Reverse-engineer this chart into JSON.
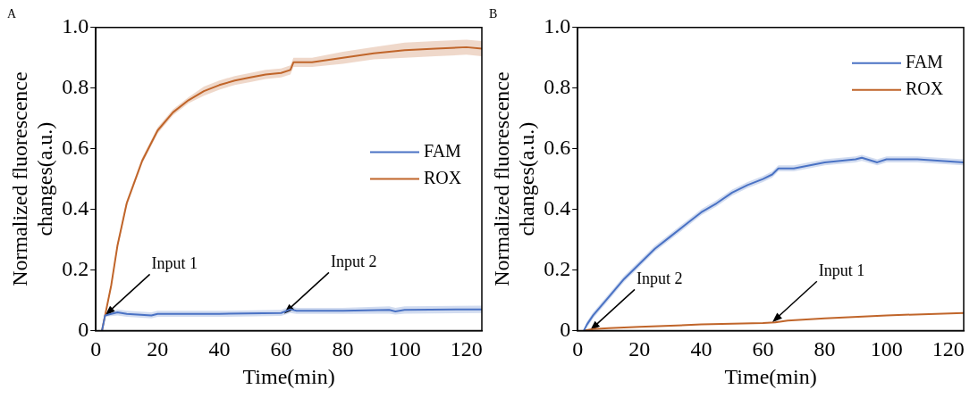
{
  "chart_data": [
    {
      "type": "line",
      "title": "A",
      "xlabel": "Time(min)",
      "ylabel": "Normalized fluorescence changes(a.u.)",
      "xlim": [
        0,
        125
      ],
      "xticks": [
        0,
        20,
        40,
        60,
        80,
        100,
        120
      ],
      "ylim": [
        0,
        1
      ],
      "yticks": [
        0,
        0.2,
        0.4,
        0.6,
        0.8,
        {
          "value": 1,
          "label": "1.0"
        }
      ],
      "grid": false,
      "legend": "right",
      "annotations": [
        {
          "text": "Input 1",
          "x": 3,
          "y": 0.05
        },
        {
          "text": "Input 2",
          "x": 61,
          "y": 0.056
        }
      ],
      "series": [
        {
          "name": "FAM",
          "color": "#4a72c4",
          "x": [
            2,
            3,
            7,
            10,
            18,
            20,
            40,
            60,
            63,
            65,
            80,
            95,
            97,
            100,
            125
          ],
          "values": [
            0,
            0.05,
            0.06,
            0.055,
            0.05,
            0.055,
            0.055,
            0.058,
            0.07,
            0.065,
            0.065,
            0.068,
            0.063,
            0.068,
            0.07
          ],
          "lower": [
            0,
            0.045,
            0.05,
            0.045,
            0.04,
            0.045,
            0.045,
            0.048,
            0.058,
            0.055,
            0.055,
            0.056,
            0.053,
            0.056,
            0.058
          ],
          "upper": [
            0,
            0.055,
            0.07,
            0.065,
            0.06,
            0.065,
            0.065,
            0.068,
            0.08,
            0.075,
            0.075,
            0.08,
            0.075,
            0.08,
            0.082
          ]
        },
        {
          "name": "ROX",
          "color": "#c0652a",
          "x": [
            2,
            3,
            5,
            7,
            10,
            15,
            20,
            25,
            30,
            35,
            40,
            45,
            50,
            55,
            60,
            63,
            64,
            70,
            80,
            90,
            100,
            110,
            120,
            125
          ],
          "values": [
            0,
            0.05,
            0.15,
            0.28,
            0.42,
            0.56,
            0.66,
            0.72,
            0.76,
            0.79,
            0.81,
            0.825,
            0.835,
            0.845,
            0.85,
            0.86,
            0.885,
            0.885,
            0.9,
            0.915,
            0.925,
            0.93,
            0.935,
            0.93
          ],
          "lower": [
            0,
            0.045,
            0.14,
            0.27,
            0.41,
            0.55,
            0.65,
            0.71,
            0.75,
            0.775,
            0.795,
            0.81,
            0.82,
            0.83,
            0.835,
            0.845,
            0.87,
            0.87,
            0.88,
            0.895,
            0.9,
            0.905,
            0.91,
            0.905
          ],
          "upper": [
            0,
            0.055,
            0.16,
            0.29,
            0.43,
            0.57,
            0.67,
            0.73,
            0.77,
            0.805,
            0.825,
            0.84,
            0.85,
            0.86,
            0.865,
            0.875,
            0.9,
            0.9,
            0.92,
            0.935,
            0.95,
            0.955,
            0.96,
            0.955
          ]
        }
      ]
    },
    {
      "type": "line",
      "title": "B",
      "xlabel": "Time(min)",
      "ylabel": "Normalized fluorescence changes(a.u.)",
      "xlim": [
        0,
        125
      ],
      "xticks": [
        0,
        20,
        40,
        60,
        80,
        100,
        120
      ],
      "ylim": [
        0,
        1
      ],
      "yticks": [
        0,
        0.2,
        0.4,
        0.6,
        0.8,
        {
          "value": 1,
          "label": "1.0"
        }
      ],
      "grid": false,
      "legend": "top right",
      "annotations": [
        {
          "text": "Input 2",
          "x": 4,
          "y": 0
        },
        {
          "text": "Input 1",
          "x": 63,
          "y": 0.027
        }
      ],
      "series": [
        {
          "name": "FAM",
          "color": "#4a72c4",
          "x": [
            2,
            3,
            5,
            10,
            15,
            20,
            25,
            30,
            35,
            40,
            45,
            50,
            55,
            60,
            63,
            65,
            70,
            80,
            90,
            92,
            97,
            100,
            110,
            125
          ],
          "values": [
            0,
            0.02,
            0.05,
            0.11,
            0.17,
            0.22,
            0.27,
            0.31,
            0.35,
            0.39,
            0.42,
            0.455,
            0.48,
            0.5,
            0.515,
            0.535,
            0.535,
            0.555,
            0.565,
            0.57,
            0.555,
            0.565,
            0.565,
            0.555
          ],
          "lower": [
            0,
            0.01,
            0.04,
            0.1,
            0.16,
            0.21,
            0.26,
            0.3,
            0.34,
            0.38,
            0.41,
            0.445,
            0.47,
            0.49,
            0.505,
            0.525,
            0.525,
            0.545,
            0.555,
            0.56,
            0.545,
            0.555,
            0.555,
            0.545
          ],
          "upper": [
            0,
            0.03,
            0.06,
            0.12,
            0.18,
            0.23,
            0.28,
            0.32,
            0.36,
            0.4,
            0.43,
            0.465,
            0.49,
            0.51,
            0.525,
            0.545,
            0.545,
            0.565,
            0.575,
            0.58,
            0.565,
            0.575,
            0.575,
            0.565
          ]
        },
        {
          "name": "ROX",
          "color": "#c0652a",
          "x": [
            2,
            5,
            10,
            20,
            40,
            60,
            64,
            68,
            80,
            100,
            125
          ],
          "values": [
            0,
            0.005,
            0.008,
            0.012,
            0.02,
            0.025,
            0.027,
            0.033,
            0.04,
            0.05,
            0.058
          ]
        }
      ]
    }
  ]
}
